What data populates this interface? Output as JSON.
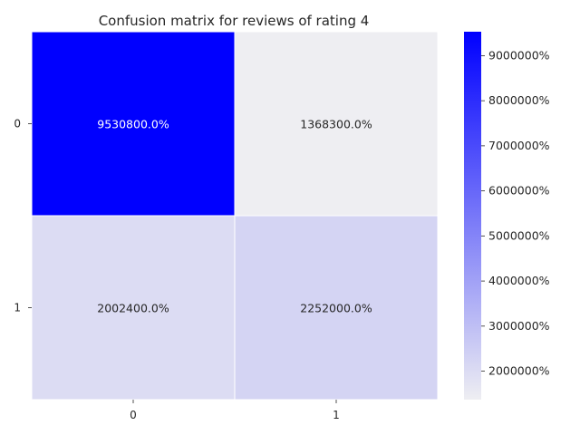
{
  "chart_data": {
    "type": "heatmap",
    "title": "Confusion matrix for reviews of rating 4",
    "rows": [
      "0",
      "1"
    ],
    "cols": [
      "0",
      "1"
    ],
    "values": [
      [
        95308,
        13683
      ],
      [
        20024,
        22520
      ]
    ],
    "labels": [
      [
        "9530800.0%",
        "1368300.0%"
      ],
      [
        "2002400.0%",
        "2252000.0%"
      ]
    ],
    "colorbar": {
      "min": 13683,
      "max": 95308,
      "ticks": [
        20000,
        30000,
        40000,
        50000,
        60000,
        70000,
        80000,
        90000
      ],
      "tick_labels": [
        "2000000%",
        "3000000%",
        "4000000%",
        "5000000%",
        "6000000%",
        "7000000%",
        "8000000%",
        "9000000%"
      ],
      "color_low": "#eeeef2",
      "color_high": "#0000ff"
    }
  }
}
